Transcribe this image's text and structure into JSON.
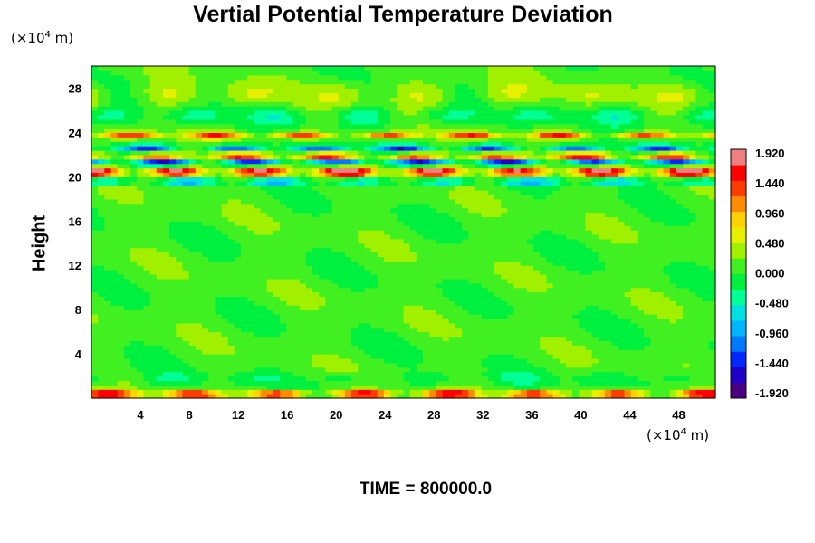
{
  "chart_data": {
    "type": "heatmap",
    "title": "Vertial Potential Temperature Deviation",
    "xlabel": "",
    "ylabel": "Height",
    "x_unit": {
      "base": "(×10",
      "exp": "4",
      "tail": " m)"
    },
    "y_unit": {
      "base": "(×10",
      "exp": "4",
      "tail": " m)"
    },
    "xlim": [
      0,
      51
    ],
    "ylim": [
      0,
      30
    ],
    "xticks": [
      4,
      8,
      12,
      16,
      20,
      24,
      28,
      32,
      36,
      40,
      44,
      48
    ],
    "yticks": [
      4,
      8,
      12,
      16,
      20,
      24,
      28
    ],
    "colorbar": {
      "min": -1.92,
      "max": 1.92,
      "labels": [
        "1.920",
        "1.440",
        "0.960",
        "0.480",
        "0.000",
        "-0.480",
        "-0.960",
        "-1.440",
        "-1.920"
      ],
      "colors": [
        "#4b0082",
        "#1e00c8",
        "#0028ff",
        "#0078ff",
        "#00b4ff",
        "#00e0e0",
        "#00ff96",
        "#00f040",
        "#40f020",
        "#a0f000",
        "#e6f000",
        "#ffd200",
        "#ff8c00",
        "#ff3c00",
        "#ff0000",
        "#f08080"
      ]
    },
    "bands": [
      {
        "y": 0.4,
        "amp": 1.8,
        "width": 0.35
      },
      {
        "y": 1.8,
        "amp": -0.3,
        "width": 0.6
      },
      {
        "y": 19.6,
        "amp": -1.2,
        "width": 0.3
      },
      {
        "y": 20.5,
        "amp": 1.9,
        "width": 0.5
      },
      {
        "y": 21.3,
        "amp": -1.9,
        "width": 0.3
      },
      {
        "y": 21.9,
        "amp": 1.5,
        "width": 0.35
      },
      {
        "y": 22.6,
        "amp": -1.4,
        "width": 0.35
      },
      {
        "y": 23.8,
        "amp": 1.3,
        "width": 0.3
      },
      {
        "y": 25.5,
        "amp": -0.5,
        "width": 0.8
      },
      {
        "y": 27.5,
        "amp": 0.4,
        "width": 1.2
      }
    ]
  },
  "time_label": "TIME = 800000.0"
}
